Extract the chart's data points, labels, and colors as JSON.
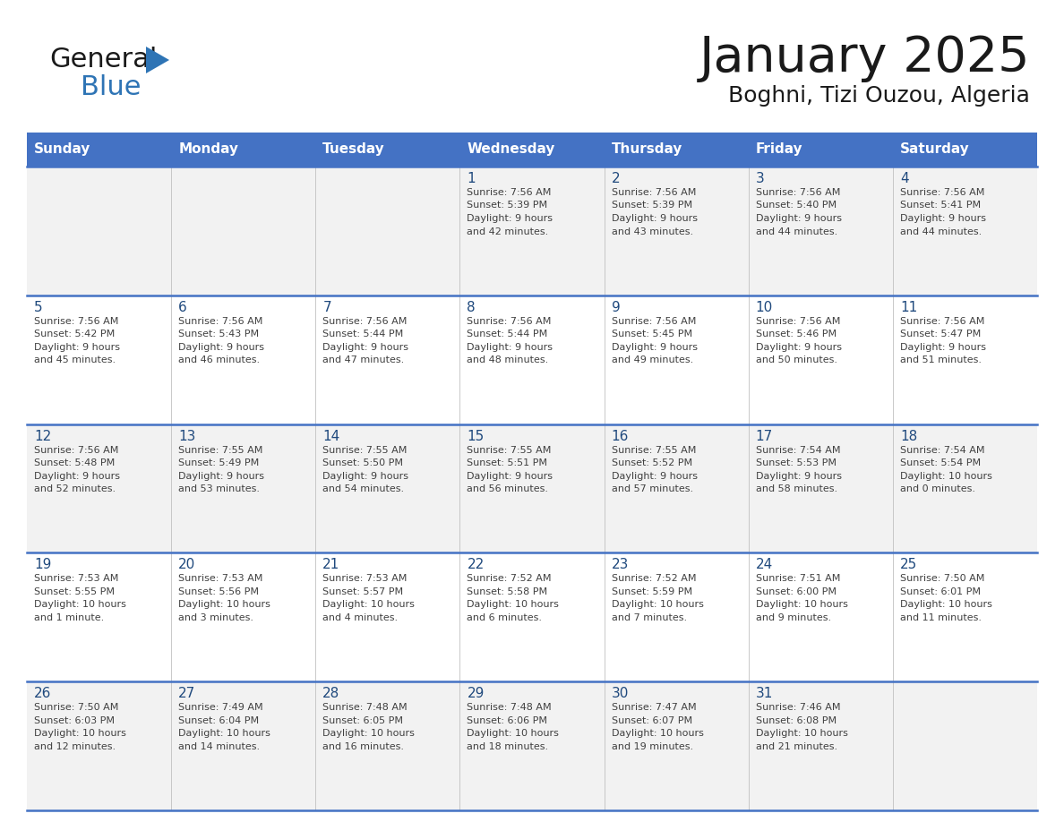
{
  "title": "January 2025",
  "subtitle": "Boghni, Tizi Ouzou, Algeria",
  "days_of_week": [
    "Sunday",
    "Monday",
    "Tuesday",
    "Wednesday",
    "Thursday",
    "Friday",
    "Saturday"
  ],
  "header_bg": "#4472C4",
  "header_text": "#FFFFFF",
  "row_bg_light": "#F2F2F2",
  "row_bg_white": "#FFFFFF",
  "day_number_color": "#1F497D",
  "cell_text_color": "#404040",
  "separator_color": "#4472C4",
  "logo_general_color": "#1a1a1a",
  "logo_blue_color": "#2E74B5",
  "logo_triangle_color": "#2E74B5",
  "calendar_data": [
    {
      "day": 1,
      "col": 3,
      "row": 0,
      "sunrise": "7:56 AM",
      "sunset": "5:39 PM",
      "daylight": "9 hours and 42 minutes."
    },
    {
      "day": 2,
      "col": 4,
      "row": 0,
      "sunrise": "7:56 AM",
      "sunset": "5:39 PM",
      "daylight": "9 hours and 43 minutes."
    },
    {
      "day": 3,
      "col": 5,
      "row": 0,
      "sunrise": "7:56 AM",
      "sunset": "5:40 PM",
      "daylight": "9 hours and 44 minutes."
    },
    {
      "day": 4,
      "col": 6,
      "row": 0,
      "sunrise": "7:56 AM",
      "sunset": "5:41 PM",
      "daylight": "9 hours and 44 minutes."
    },
    {
      "day": 5,
      "col": 0,
      "row": 1,
      "sunrise": "7:56 AM",
      "sunset": "5:42 PM",
      "daylight": "9 hours and 45 minutes."
    },
    {
      "day": 6,
      "col": 1,
      "row": 1,
      "sunrise": "7:56 AM",
      "sunset": "5:43 PM",
      "daylight": "9 hours and 46 minutes."
    },
    {
      "day": 7,
      "col": 2,
      "row": 1,
      "sunrise": "7:56 AM",
      "sunset": "5:44 PM",
      "daylight": "9 hours and 47 minutes."
    },
    {
      "day": 8,
      "col": 3,
      "row": 1,
      "sunrise": "7:56 AM",
      "sunset": "5:44 PM",
      "daylight": "9 hours and 48 minutes."
    },
    {
      "day": 9,
      "col": 4,
      "row": 1,
      "sunrise": "7:56 AM",
      "sunset": "5:45 PM",
      "daylight": "9 hours and 49 minutes."
    },
    {
      "day": 10,
      "col": 5,
      "row": 1,
      "sunrise": "7:56 AM",
      "sunset": "5:46 PM",
      "daylight": "9 hours and 50 minutes."
    },
    {
      "day": 11,
      "col": 6,
      "row": 1,
      "sunrise": "7:56 AM",
      "sunset": "5:47 PM",
      "daylight": "9 hours and 51 minutes."
    },
    {
      "day": 12,
      "col": 0,
      "row": 2,
      "sunrise": "7:56 AM",
      "sunset": "5:48 PM",
      "daylight": "9 hours and 52 minutes."
    },
    {
      "day": 13,
      "col": 1,
      "row": 2,
      "sunrise": "7:55 AM",
      "sunset": "5:49 PM",
      "daylight": "9 hours and 53 minutes."
    },
    {
      "day": 14,
      "col": 2,
      "row": 2,
      "sunrise": "7:55 AM",
      "sunset": "5:50 PM",
      "daylight": "9 hours and 54 minutes."
    },
    {
      "day": 15,
      "col": 3,
      "row": 2,
      "sunrise": "7:55 AM",
      "sunset": "5:51 PM",
      "daylight": "9 hours and 56 minutes."
    },
    {
      "day": 16,
      "col": 4,
      "row": 2,
      "sunrise": "7:55 AM",
      "sunset": "5:52 PM",
      "daylight": "9 hours and 57 minutes."
    },
    {
      "day": 17,
      "col": 5,
      "row": 2,
      "sunrise": "7:54 AM",
      "sunset": "5:53 PM",
      "daylight": "9 hours and 58 minutes."
    },
    {
      "day": 18,
      "col": 6,
      "row": 2,
      "sunrise": "7:54 AM",
      "sunset": "5:54 PM",
      "daylight": "10 hours and 0 minutes."
    },
    {
      "day": 19,
      "col": 0,
      "row": 3,
      "sunrise": "7:53 AM",
      "sunset": "5:55 PM",
      "daylight": "10 hours and 1 minute."
    },
    {
      "day": 20,
      "col": 1,
      "row": 3,
      "sunrise": "7:53 AM",
      "sunset": "5:56 PM",
      "daylight": "10 hours and 3 minutes."
    },
    {
      "day": 21,
      "col": 2,
      "row": 3,
      "sunrise": "7:53 AM",
      "sunset": "5:57 PM",
      "daylight": "10 hours and 4 minutes."
    },
    {
      "day": 22,
      "col": 3,
      "row": 3,
      "sunrise": "7:52 AM",
      "sunset": "5:58 PM",
      "daylight": "10 hours and 6 minutes."
    },
    {
      "day": 23,
      "col": 4,
      "row": 3,
      "sunrise": "7:52 AM",
      "sunset": "5:59 PM",
      "daylight": "10 hours and 7 minutes."
    },
    {
      "day": 24,
      "col": 5,
      "row": 3,
      "sunrise": "7:51 AM",
      "sunset": "6:00 PM",
      "daylight": "10 hours and 9 minutes."
    },
    {
      "day": 25,
      "col": 6,
      "row": 3,
      "sunrise": "7:50 AM",
      "sunset": "6:01 PM",
      "daylight": "10 hours and 11 minutes."
    },
    {
      "day": 26,
      "col": 0,
      "row": 4,
      "sunrise": "7:50 AM",
      "sunset": "6:03 PM",
      "daylight": "10 hours and 12 minutes."
    },
    {
      "day": 27,
      "col": 1,
      "row": 4,
      "sunrise": "7:49 AM",
      "sunset": "6:04 PM",
      "daylight": "10 hours and 14 minutes."
    },
    {
      "day": 28,
      "col": 2,
      "row": 4,
      "sunrise": "7:48 AM",
      "sunset": "6:05 PM",
      "daylight": "10 hours and 16 minutes."
    },
    {
      "day": 29,
      "col": 3,
      "row": 4,
      "sunrise": "7:48 AM",
      "sunset": "6:06 PM",
      "daylight": "10 hours and 18 minutes."
    },
    {
      "day": 30,
      "col": 4,
      "row": 4,
      "sunrise": "7:47 AM",
      "sunset": "6:07 PM",
      "daylight": "10 hours and 19 minutes."
    },
    {
      "day": 31,
      "col": 5,
      "row": 4,
      "sunrise": "7:46 AM",
      "sunset": "6:08 PM",
      "daylight": "10 hours and 21 minutes."
    }
  ]
}
